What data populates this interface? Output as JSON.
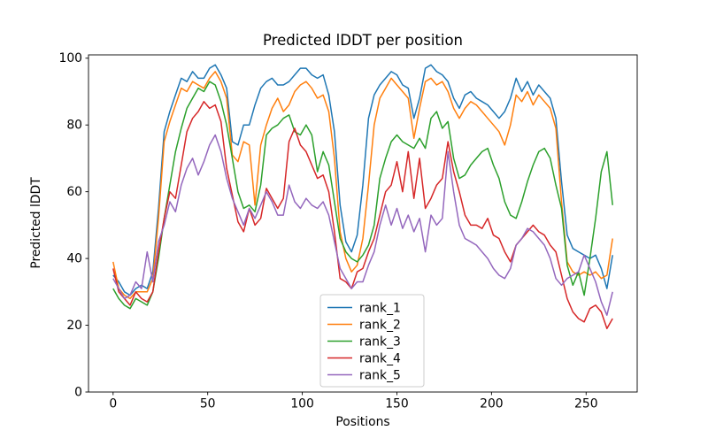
{
  "figure": {
    "title": "Predicted lDDT per position",
    "xlabel": "Positions",
    "ylabel": "Predicted lDDT",
    "background_color": "#ffffff",
    "spine_color": "#000000",
    "tick_color": "#000000",
    "legend_border_color": "#cccccc",
    "legend_background": "#ffffff"
  },
  "chart_data": {
    "type": "line",
    "title": "Predicted lDDT per position",
    "xlabel": "Positions",
    "ylabel": "Predicted lDDT",
    "xlim": [
      -13,
      277
    ],
    "ylim": [
      0,
      101
    ],
    "x_ticks": [
      0,
      50,
      100,
      150,
      200,
      250
    ],
    "y_ticks": [
      0,
      20,
      40,
      60,
      80,
      100
    ],
    "grid": false,
    "legend_position": "lower center",
    "x_start": 0,
    "x_step": 3,
    "series": [
      {
        "name": "rank_1",
        "color": "#1f77b4",
        "values": [
          35,
          33,
          30,
          29,
          31,
          32,
          31,
          36,
          55,
          78,
          84,
          89,
          94,
          93,
          96,
          94,
          94,
          97,
          98,
          95,
          91,
          75,
          74,
          80,
          80,
          86,
          91,
          93,
          94,
          92,
          92,
          93,
          95,
          97,
          97,
          95,
          94,
          95,
          89,
          78,
          56,
          45,
          42,
          47,
          62,
          82,
          89,
          92,
          94,
          96,
          95,
          92,
          91,
          82,
          88,
          97,
          98,
          96,
          95,
          93,
          88,
          85,
          89,
          90,
          88,
          87,
          86,
          84,
          82,
          84,
          88,
          94,
          90,
          93,
          89,
          92,
          90,
          88,
          82,
          63,
          47,
          43,
          42,
          41,
          40,
          41,
          37,
          31,
          41
        ]
      },
      {
        "name": "rank_2",
        "color": "#ff7f0e",
        "values": [
          39,
          31,
          29,
          28,
          30,
          30,
          30,
          34,
          52,
          75,
          81,
          86,
          91,
          90,
          93,
          92,
          91,
          94,
          96,
          93,
          88,
          71,
          69,
          75,
          74,
          56,
          74,
          80,
          85,
          88,
          84,
          86,
          90,
          92,
          93,
          91,
          88,
          89,
          84,
          70,
          48,
          40,
          36,
          38,
          46,
          62,
          80,
          88,
          91,
          94,
          92,
          90,
          88,
          76,
          85,
          93,
          94,
          92,
          93,
          90,
          85,
          82,
          85,
          87,
          86,
          84,
          82,
          80,
          78,
          74,
          80,
          89,
          87,
          90,
          86,
          89,
          87,
          85,
          79,
          57,
          39,
          36,
          35,
          36,
          35,
          36,
          34,
          35,
          46
        ]
      },
      {
        "name": "rank_3",
        "color": "#2ca02c",
        "values": [
          31,
          28,
          26,
          25,
          28,
          27,
          26,
          30,
          40,
          52,
          62,
          72,
          79,
          85,
          88,
          91,
          90,
          93,
          92,
          87,
          80,
          70,
          60,
          55,
          56,
          54,
          62,
          77,
          79,
          80,
          82,
          83,
          78,
          77,
          80,
          77,
          66,
          72,
          68,
          57,
          46,
          42,
          40,
          39,
          41,
          44,
          50,
          64,
          70,
          75,
          77,
          75,
          74,
          73,
          76,
          73,
          82,
          84,
          79,
          81,
          70,
          64,
          65,
          68,
          70,
          72,
          73,
          68,
          64,
          57,
          53,
          52,
          57,
          63,
          68,
          72,
          73,
          70,
          62,
          55,
          38,
          32,
          36,
          29,
          40,
          52,
          66,
          72,
          56
        ]
      },
      {
        "name": "rank_4",
        "color": "#d62728",
        "values": [
          37,
          30,
          28,
          26,
          30,
          28,
          27,
          30,
          42,
          52,
          60,
          58,
          68,
          78,
          82,
          84,
          87,
          85,
          86,
          81,
          67,
          59,
          51,
          48,
          55,
          50,
          52,
          61,
          58,
          55,
          58,
          75,
          79,
          74,
          72,
          68,
          64,
          65,
          60,
          48,
          34,
          33,
          31,
          36,
          37,
          42,
          46,
          53,
          60,
          62,
          69,
          60,
          72,
          58,
          70,
          55,
          58,
          62,
          64,
          75,
          66,
          60,
          53,
          50,
          50,
          49,
          52,
          47,
          46,
          42,
          39,
          44,
          46,
          48,
          50,
          48,
          47,
          44,
          42,
          35,
          28,
          24,
          22,
          21,
          25,
          26,
          24,
          19,
          22
        ]
      },
      {
        "name": "rank_5",
        "color": "#9467bd",
        "values": [
          34,
          31,
          28,
          29,
          33,
          31,
          42,
          33,
          45,
          50,
          57,
          54,
          62,
          67,
          70,
          65,
          69,
          74,
          77,
          72,
          64,
          58,
          54,
          50,
          55,
          52,
          56,
          60,
          57,
          53,
          53,
          62,
          57,
          55,
          58,
          56,
          55,
          57,
          53,
          45,
          37,
          34,
          31,
          33,
          33,
          38,
          42,
          50,
          56,
          50,
          55,
          49,
          53,
          48,
          52,
          42,
          53,
          50,
          52,
          72,
          60,
          50,
          46,
          45,
          44,
          42,
          40,
          37,
          35,
          34,
          37,
          44,
          46,
          49,
          48,
          46,
          44,
          40,
          34,
          32,
          34,
          35,
          36,
          41,
          37,
          33,
          27,
          23,
          30
        ]
      }
    ]
  }
}
